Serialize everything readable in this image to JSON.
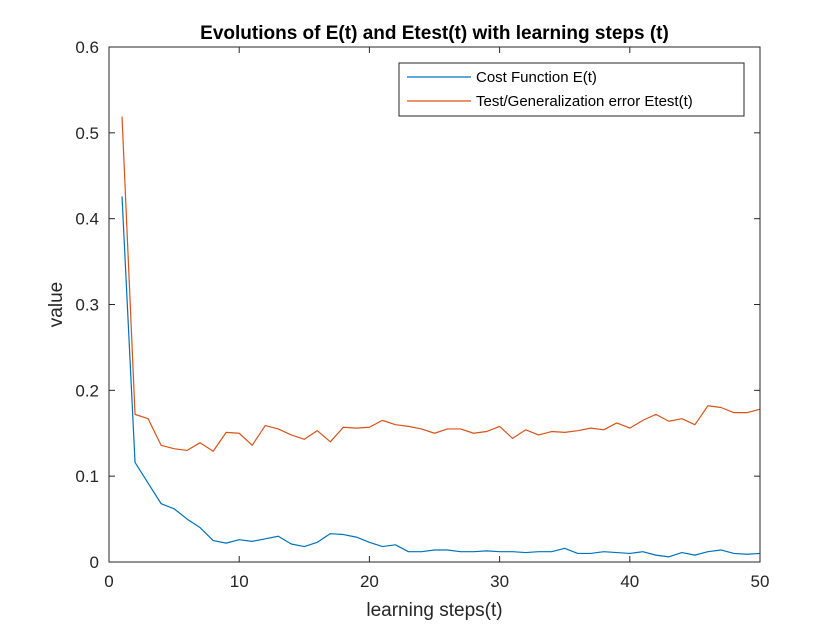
{
  "chart_data": {
    "type": "line",
    "title": "Evolutions of E(t) and Etest(t) with learning steps (t)",
    "xlabel": "learning steps(t)",
    "ylabel": "value",
    "xlim": [
      0,
      50
    ],
    "ylim": [
      0,
      0.6
    ],
    "xticks": [
      0,
      10,
      20,
      30,
      40,
      50
    ],
    "yticks": [
      0,
      0.1,
      0.2,
      0.3,
      0.4,
      0.5,
      0.6
    ],
    "grid": false,
    "legend_position": "top-right",
    "x": [
      1,
      2,
      3,
      4,
      5,
      6,
      7,
      8,
      9,
      10,
      11,
      12,
      13,
      14,
      15,
      16,
      17,
      18,
      19,
      20,
      21,
      22,
      23,
      24,
      25,
      26,
      27,
      28,
      29,
      30,
      31,
      32,
      33,
      34,
      35,
      36,
      37,
      38,
      39,
      40,
      41,
      42,
      43,
      44,
      45,
      46,
      47,
      48,
      49,
      50
    ],
    "series": [
      {
        "name": "Cost Function E(t)",
        "color": "#0072BD",
        "values": [
          0.426,
          0.116,
          0.092,
          0.068,
          0.062,
          0.05,
          0.04,
          0.025,
          0.022,
          0.026,
          0.024,
          0.027,
          0.03,
          0.021,
          0.018,
          0.023,
          0.033,
          0.032,
          0.029,
          0.023,
          0.018,
          0.02,
          0.012,
          0.012,
          0.014,
          0.014,
          0.012,
          0.012,
          0.013,
          0.012,
          0.012,
          0.011,
          0.012,
          0.012,
          0.016,
          0.01,
          0.01,
          0.012,
          0.011,
          0.01,
          0.012,
          0.008,
          0.006,
          0.011,
          0.008,
          0.012,
          0.014,
          0.01,
          0.009,
          0.01
        ]
      },
      {
        "name": "Test/Generalization error Etest(t)",
        "color": "#D95319",
        "values": [
          0.519,
          0.172,
          0.167,
          0.136,
          0.132,
          0.13,
          0.139,
          0.129,
          0.151,
          0.15,
          0.136,
          0.159,
          0.155,
          0.148,
          0.143,
          0.153,
          0.14,
          0.157,
          0.156,
          0.157,
          0.165,
          0.16,
          0.158,
          0.155,
          0.15,
          0.155,
          0.155,
          0.15,
          0.152,
          0.158,
          0.144,
          0.154,
          0.148,
          0.152,
          0.151,
          0.153,
          0.156,
          0.154,
          0.162,
          0.156,
          0.165,
          0.172,
          0.164,
          0.167,
          0.16,
          0.182,
          0.18,
          0.174,
          0.174,
          0.178
        ]
      }
    ]
  }
}
